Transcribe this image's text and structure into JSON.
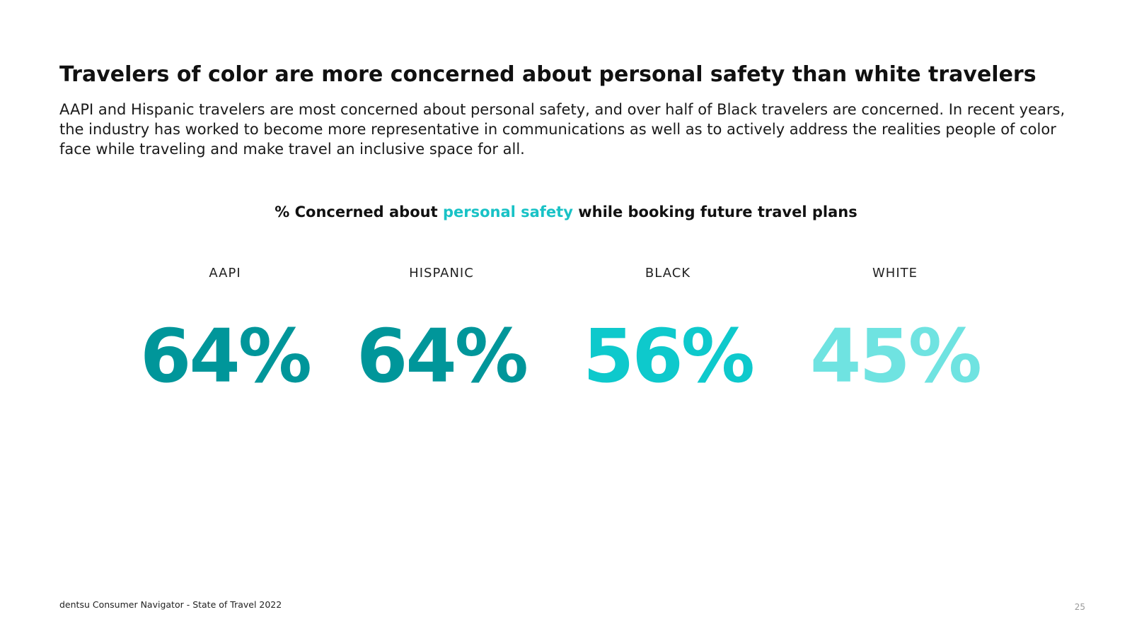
{
  "slide": {
    "title": "Travelers of color are more concerned about personal safety than white travelers",
    "subtitle": "AAPI and Hispanic travelers are most concerned about personal safety, and over half of Black travelers are concerned. In recent years, the industry has worked to become more representative in communications as well as to actively address the realities people of color face while traveling and make travel an inclusive space for all.",
    "footer": "dentsu Consumer Navigator - State of Travel 2022",
    "page_number": "25"
  },
  "chart_title": {
    "prefix": "% Concerned about ",
    "highlight": "personal safety",
    "suffix": " while booking future travel plans",
    "highlight_color": "#19c2c6"
  },
  "chart_data": {
    "type": "table",
    "title": "% Concerned about personal safety while booking future travel plans",
    "categories": [
      "AAPI",
      "HISPANIC",
      "BLACK",
      "WHITE"
    ],
    "values": [
      64,
      64,
      56,
      45
    ],
    "labels": [
      "64%",
      "64%",
      "56%",
      "45%"
    ],
    "colors": [
      "#00969a",
      "#00969a",
      "#0ec9cc",
      "#6fe3e1"
    ]
  }
}
